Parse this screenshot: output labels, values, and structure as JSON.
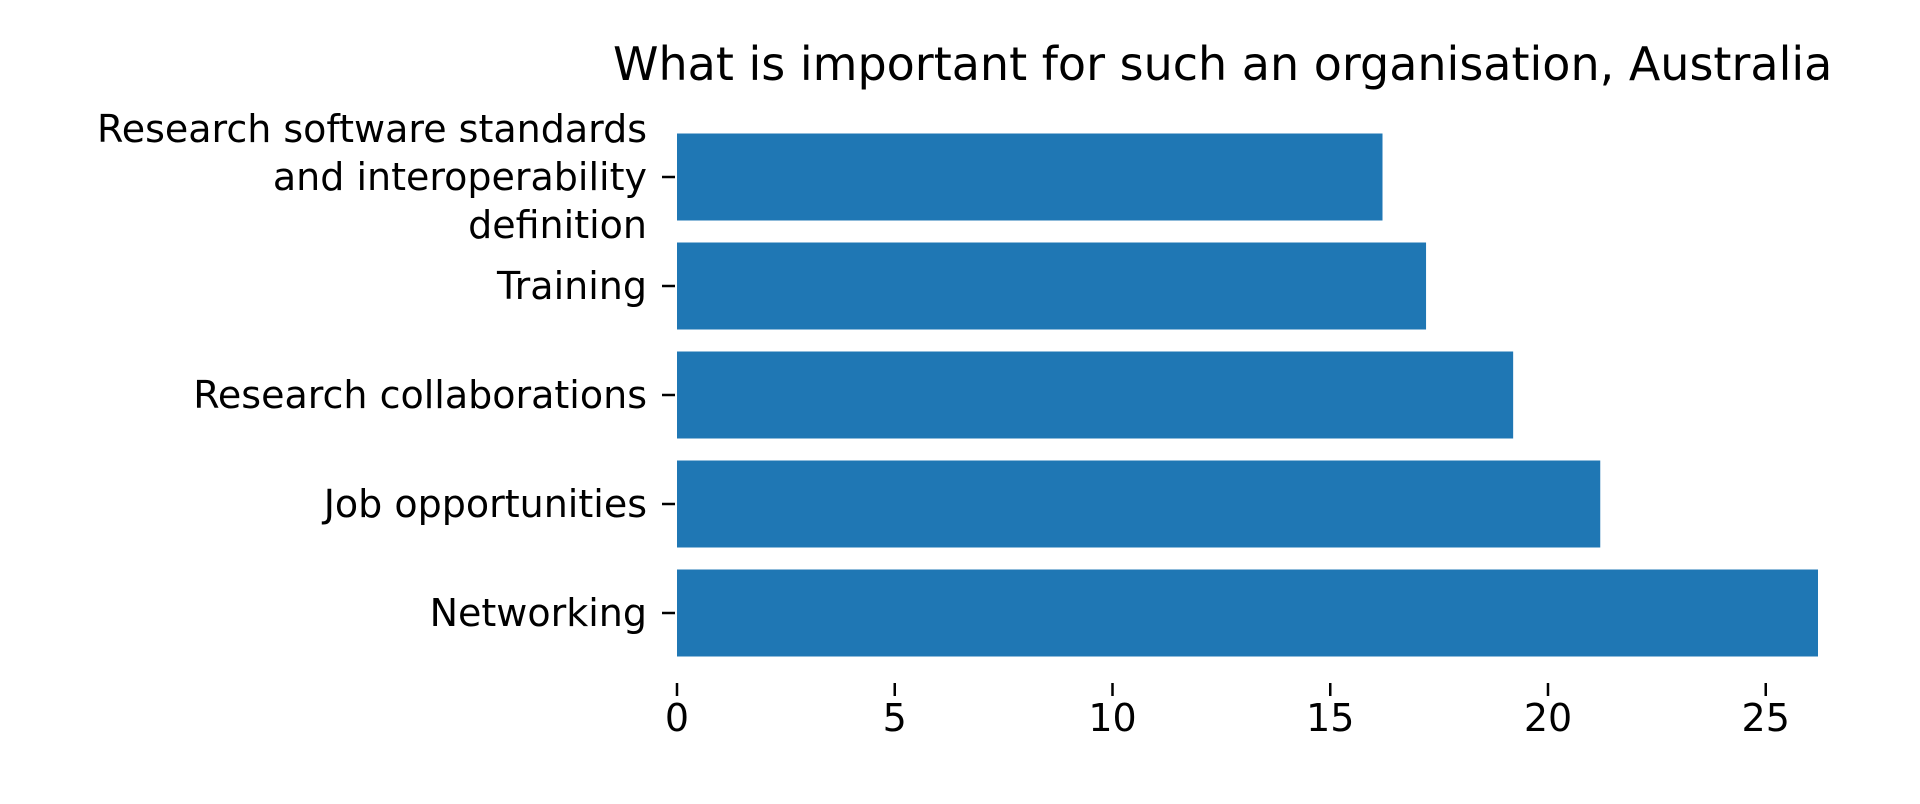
{
  "colors": {
    "bar": "#1f77b4",
    "text": "#000000",
    "background": "#ffffff"
  },
  "chart_data": {
    "type": "bar",
    "orientation": "horizontal",
    "title": "What is important for such an organisation, Australia",
    "xlabel": "",
    "ylabel": "",
    "categories": [
      "Research software standards and interoperability definition",
      "Training",
      "Research collaborations",
      "Job opportunities",
      "Networking"
    ],
    "category_label_lines": [
      [
        "Research software standards",
        "and interoperability",
        "definition"
      ],
      [
        "Training"
      ],
      [
        "Research collaborations"
      ],
      [
        "Job opportunities"
      ],
      [
        "Networking"
      ]
    ],
    "values": [
      16.2,
      17.2,
      19.2,
      21.2,
      26.2
    ],
    "xlim": [
      0,
      26.2
    ],
    "xticks": [
      0,
      5,
      10,
      15,
      20,
      25
    ],
    "xtick_labels": [
      "0",
      "5",
      "10",
      "15",
      "20",
      "25"
    ],
    "grid": false,
    "legend": "none"
  }
}
